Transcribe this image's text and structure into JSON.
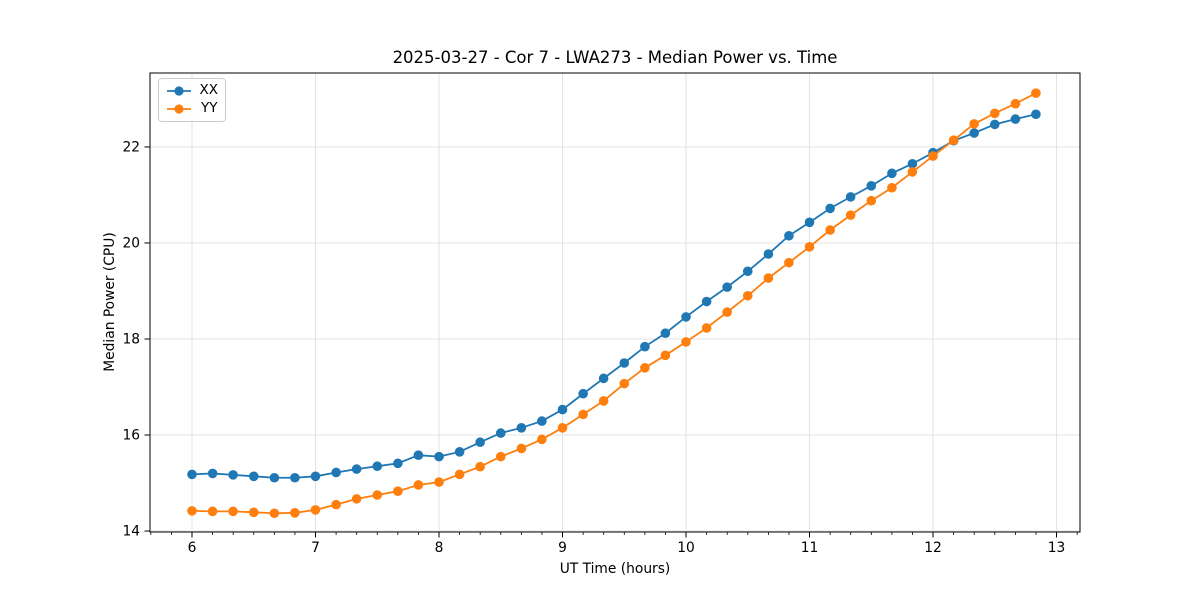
{
  "figure": {
    "title": "2025-03-27 - Cor 7 - LWA273 - Median Power vs. Time"
  },
  "chart_data": {
    "type": "line",
    "title": "2025-03-27 - Cor 7 - LWA273 - Median Power vs. Time",
    "xlabel": "UT Time (hours)",
    "ylabel": "Median Power (CPU)",
    "xlim": [
      5.66,
      13.19
    ],
    "ylim": [
      13.98,
      23.54
    ],
    "xticks": [
      6,
      7,
      8,
      9,
      10,
      11,
      12,
      13
    ],
    "yticks": [
      14,
      16,
      18,
      20,
      22
    ],
    "x_minor_step": 0.16667,
    "grid": true,
    "grid_color": "#e3e3e3",
    "legend_position": "upper-left",
    "x": [
      6.0,
      6.167,
      6.333,
      6.5,
      6.667,
      6.833,
      7.0,
      7.167,
      7.333,
      7.5,
      7.667,
      7.833,
      8.0,
      8.167,
      8.333,
      8.5,
      8.667,
      8.833,
      9.0,
      9.167,
      9.333,
      9.5,
      9.667,
      9.833,
      10.0,
      10.167,
      10.333,
      10.5,
      10.667,
      10.833,
      11.0,
      11.167,
      11.333,
      11.5,
      11.667,
      11.833,
      12.0,
      12.167,
      12.333,
      12.5,
      12.667,
      12.833
    ],
    "series": [
      {
        "name": "XX",
        "color": "#1f77b4",
        "marker": "circle",
        "values": [
          15.18,
          15.2,
          15.17,
          15.14,
          15.11,
          15.11,
          15.14,
          15.22,
          15.29,
          15.35,
          15.41,
          15.58,
          15.55,
          15.65,
          15.85,
          16.04,
          16.15,
          16.29,
          16.53,
          16.86,
          17.18,
          17.5,
          17.84,
          18.12,
          18.46,
          18.78,
          19.08,
          19.41,
          19.77,
          20.15,
          20.43,
          20.72,
          20.96,
          21.19,
          21.45,
          21.65,
          21.88,
          22.13,
          22.29,
          22.47,
          22.58,
          22.68
        ]
      },
      {
        "name": "YY",
        "color": "#ff7f0e",
        "marker": "circle",
        "values": [
          14.42,
          14.41,
          14.41,
          14.39,
          14.37,
          14.38,
          14.44,
          14.55,
          14.67,
          14.75,
          14.83,
          14.96,
          15.02,
          15.18,
          15.34,
          15.55,
          15.72,
          15.91,
          16.15,
          16.43,
          16.71,
          17.07,
          17.4,
          17.66,
          17.94,
          18.23,
          18.56,
          18.9,
          19.27,
          19.59,
          19.92,
          20.27,
          20.58,
          20.88,
          21.15,
          21.48,
          21.81,
          22.14,
          22.48,
          22.7,
          22.9,
          23.12
        ]
      }
    ]
  }
}
